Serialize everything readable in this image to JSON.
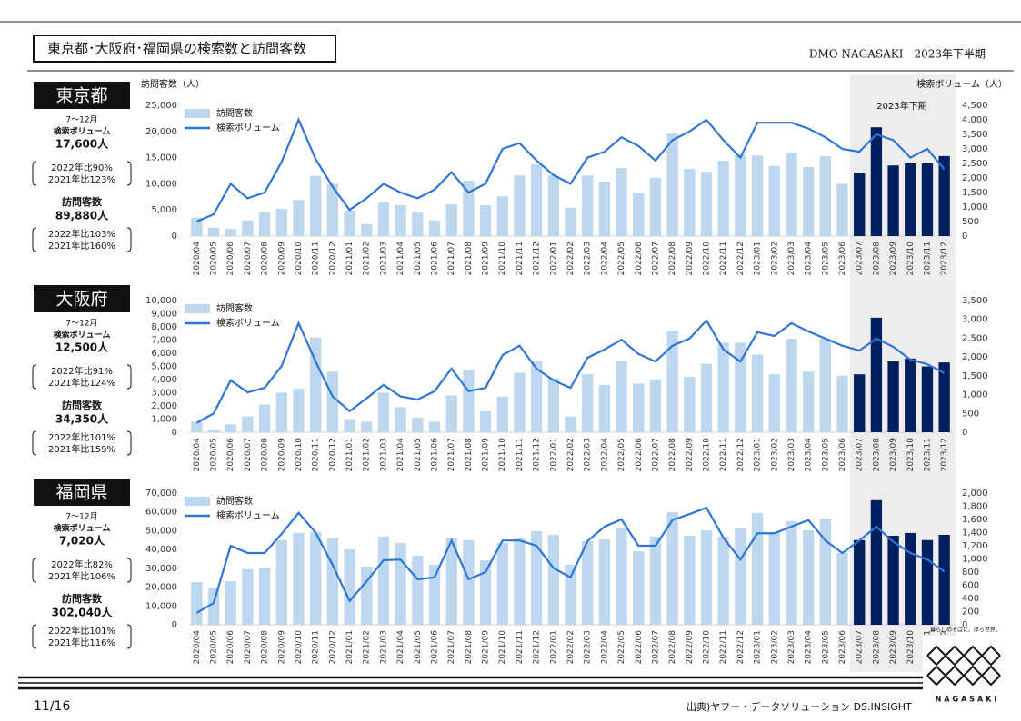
{
  "header": {
    "title": "東京都･大阪府･福岡県の検索数と訪問客数",
    "subtitle": "DMO NAGASAKI　2023年下半期"
  },
  "panels": [
    {
      "region": "東京都",
      "period": "7～12月",
      "search_label": "検索ボリューム",
      "search_total": "17,600人",
      "search_compare": [
        "2022年比90%",
        "2021年比123%"
      ],
      "visit_label": "訪問客数",
      "visit_total": "89,880人",
      "visit_compare": [
        "2022年比103%",
        "2021年比160%"
      ]
    },
    {
      "region": "大阪府",
      "period": "7～12月",
      "search_label": "検索ボリューム",
      "search_total": "12,500人",
      "search_compare": [
        "2022年比91%",
        "2021年比124%"
      ],
      "visit_label": "訪問客数",
      "visit_total": "34,350人",
      "visit_compare": [
        "2022年比101%",
        "2021年比159%"
      ]
    },
    {
      "region": "福岡県",
      "period": "7～12月",
      "search_label": "検索ボリューム",
      "search_total": "7,020人",
      "search_compare": [
        "2022年比82%",
        "2021年比106%"
      ],
      "visit_label": "訪問客数",
      "visit_total": "302,040人",
      "visit_compare": [
        "2022年比101%",
        "2021年比116%"
      ]
    }
  ],
  "chart_data": [
    {
      "type": "bar_line",
      "y_label": "訪問客数（人）",
      "y2_label": "検索ボリューム（人）",
      "legend": "upper left",
      "highlight": {
        "label": "2023年下期",
        "start": "2023/07",
        "end": "2023/12",
        "color": "#002060",
        "background": "#ededed"
      },
      "categories": [
        "2020/04",
        "2020/05",
        "2020/06",
        "2020/07",
        "2020/08",
        "2020/09",
        "2020/10",
        "2020/11",
        "2020/12",
        "2021/01",
        "2021/02",
        "2021/03",
        "2021/04",
        "2021/05",
        "2021/06",
        "2021/07",
        "2021/08",
        "2021/09",
        "2021/10",
        "2021/11",
        "2021/12",
        "2022/01",
        "2022/02",
        "2022/03",
        "2022/04",
        "2022/05",
        "2022/06",
        "2022/07",
        "2022/08",
        "2022/09",
        "2022/10",
        "2022/11",
        "2022/12",
        "2023/01",
        "2023/02",
        "2023/03",
        "2023/04",
        "2023/05",
        "2023/06",
        "2023/07",
        "2023/08",
        "2023/09",
        "2023/10",
        "2023/11",
        "2023/12"
      ],
      "series": [
        {
          "name": "訪問客数",
          "type": "bar",
          "color": "#bdd7ee",
          "values": [
            3500,
            1600,
            1400,
            3000,
            4500,
            5200,
            6900,
            11500,
            10000,
            4900,
            2300,
            6400,
            5900,
            4500,
            3000,
            6100,
            10600,
            5900,
            7600,
            11600,
            13700,
            11600,
            5400,
            11600,
            10400,
            13000,
            8200,
            11100,
            19600,
            12800,
            12300,
            14400,
            15600,
            15400,
            13400,
            16000,
            13200,
            15300,
            10000,
            12100,
            20800,
            13500,
            13900,
            13900,
            15300
          ]
        },
        {
          "name": "検索ボリューム",
          "type": "line",
          "axis": "y2",
          "color": "#2e75d6",
          "values": [
            500,
            750,
            1800,
            1300,
            1500,
            2550,
            4000,
            2650,
            1700,
            900,
            1300,
            1800,
            1500,
            1300,
            1600,
            2200,
            1500,
            1800,
            3000,
            3200,
            2600,
            2100,
            1800,
            2700,
            2900,
            3400,
            3100,
            2600,
            3300,
            3600,
            4000,
            3300,
            2700,
            3900,
            3900,
            3900,
            3700,
            3400,
            3000,
            2900,
            3500,
            3300,
            2700,
            3000,
            2300
          ]
        }
      ],
      "ylim": [
        0,
        25000
      ],
      "yticks": [
        0,
        {
          "value": 5000,
          "label": "5,000"
        },
        {
          "value": 10000,
          "label": "10,000"
        },
        {
          "value": 15000,
          "label": "15,000"
        },
        {
          "value": 20000,
          "label": "20,000"
        },
        {
          "value": 25000,
          "label": "25,000"
        }
      ],
      "y2lim": [
        0,
        4500
      ],
      "y2ticks": [
        0,
        500,
        {
          "value": 1000,
          "label": "1,000"
        },
        {
          "value": 1500,
          "label": "1,500"
        },
        {
          "value": 2000,
          "label": "2,000"
        },
        {
          "value": 2500,
          "label": "2,500"
        },
        {
          "value": 3000,
          "label": "3,000"
        },
        {
          "value": 3500,
          "label": "3,500"
        },
        {
          "value": 4000,
          "label": "4,000"
        },
        {
          "value": 4500,
          "label": "4,500"
        }
      ]
    },
    {
      "type": "bar_line",
      "legend": "upper left",
      "highlight": {
        "start": "2023/07",
        "end": "2023/12",
        "color": "#002060",
        "background": "#ededed"
      },
      "categories": [
        "2020/04",
        "2020/05",
        "2020/06",
        "2020/07",
        "2020/08",
        "2020/09",
        "2020/10",
        "2020/11",
        "2020/12",
        "2021/01",
        "2021/02",
        "2021/03",
        "2021/04",
        "2021/05",
        "2021/06",
        "2021/07",
        "2021/08",
        "2021/09",
        "2021/10",
        "2021/11",
        "2021/12",
        "2022/01",
        "2022/02",
        "2022/03",
        "2022/04",
        "2022/05",
        "2022/06",
        "2022/07",
        "2022/08",
        "2022/09",
        "2022/10",
        "2022/11",
        "2022/12",
        "2023/01",
        "2023/02",
        "2023/03",
        "2023/04",
        "2023/05",
        "2023/06",
        "2023/07",
        "2023/08",
        "2023/09",
        "2023/10",
        "2023/11",
        "2023/12"
      ],
      "series": [
        {
          "name": "訪問客数",
          "type": "bar",
          "color": "#bdd7ee",
          "values": [
            800,
            200,
            600,
            1200,
            2100,
            3000,
            3300,
            7200,
            4600,
            1000,
            800,
            3000,
            1900,
            1100,
            800,
            2800,
            4700,
            1600,
            2700,
            4500,
            5400,
            4100,
            1200,
            4400,
            3600,
            5400,
            3700,
            4000,
            7700,
            4200,
            5200,
            6800,
            6800,
            5900,
            4400,
            7100,
            4600,
            7100,
            4300,
            4400,
            8700,
            5400,
            5600,
            5000,
            5300
          ]
        },
        {
          "name": "検索ボリューム",
          "type": "line",
          "axis": "y2",
          "color": "#2e75d6",
          "values": [
            250,
            500,
            1380,
            1060,
            1180,
            1760,
            2900,
            1880,
            950,
            560,
            900,
            1260,
            950,
            870,
            1090,
            1690,
            1090,
            1180,
            2050,
            2300,
            1690,
            1380,
            1180,
            1980,
            2200,
            2460,
            2080,
            1880,
            2300,
            2490,
            2970,
            2200,
            1880,
            2660,
            2560,
            2900,
            2680,
            2490,
            2300,
            2170,
            2490,
            2270,
            1930,
            1810,
            1570
          ]
        }
      ],
      "ylim": [
        0,
        10000
      ],
      "yticks": [
        0,
        {
          "value": 1000,
          "label": "1,000"
        },
        {
          "value": 2000,
          "label": "2,000"
        },
        {
          "value": 3000,
          "label": "3,000"
        },
        {
          "value": 4000,
          "label": "4,000"
        },
        {
          "value": 5000,
          "label": "5,000"
        },
        {
          "value": 6000,
          "label": "6,000"
        },
        {
          "value": 7000,
          "label": "7,000"
        },
        {
          "value": 8000,
          "label": "8,000"
        },
        {
          "value": 9000,
          "label": "9,000"
        },
        {
          "value": 10000,
          "label": "10,000"
        }
      ],
      "y2lim": [
        0,
        3500
      ],
      "y2ticks": [
        0,
        500,
        {
          "value": 1000,
          "label": "1,000"
        },
        {
          "value": 1500,
          "label": "1,500"
        },
        {
          "value": 2000,
          "label": "2,000"
        },
        {
          "value": 2500,
          "label": "2,500"
        },
        {
          "value": 3000,
          "label": "3,000"
        },
        {
          "value": 3500,
          "label": "3,500"
        }
      ]
    },
    {
      "type": "bar_line",
      "legend": "upper left",
      "highlight": {
        "start": "2023/07",
        "end": "2023/12",
        "color": "#002060",
        "background": "#ededed"
      },
      "categories": [
        "2020/04",
        "2020/05",
        "2020/06",
        "2020/07",
        "2020/08",
        "2020/09",
        "2020/10",
        "2020/11",
        "2020/12",
        "2021/01",
        "2021/02",
        "2021/03",
        "2021/04",
        "2021/05",
        "2021/06",
        "2021/07",
        "2021/08",
        "2021/09",
        "2021/10",
        "2021/11",
        "2021/12",
        "2022/01",
        "2022/02",
        "2022/03",
        "2022/04",
        "2022/05",
        "2022/06",
        "2022/07",
        "2022/08",
        "2022/09",
        "2022/10",
        "2022/11",
        "2022/12",
        "2023/01",
        "2023/02",
        "2023/03",
        "2023/04",
        "2023/05",
        "2023/06",
        "2023/07",
        "2023/08",
        "2023/09",
        "2023/10",
        "2023/11",
        "2023/12"
      ],
      "series": [
        {
          "name": "訪問客数",
          "type": "bar",
          "color": "#bdd7ee",
          "values": [
            22700,
            19800,
            23200,
            29500,
            30400,
            45000,
            48800,
            49300,
            45900,
            40100,
            30900,
            46900,
            43500,
            36700,
            31900,
            46400,
            45000,
            34300,
            43500,
            46400,
            49800,
            47800,
            31900,
            44400,
            45400,
            51200,
            39100,
            46900,
            59900,
            47300,
            50200,
            46900,
            51200,
            59400,
            49300,
            55100,
            50200,
            56500,
            38200,
            45000,
            66200,
            47300,
            48800,
            45000,
            47800
          ]
        },
        {
          "name": "検索ボリューム",
          "type": "line",
          "axis": "y2",
          "color": "#2e75d6",
          "values": [
            180,
            330,
            1200,
            1090,
            1090,
            1380,
            1700,
            1400,
            910,
            360,
            660,
            980,
            990,
            690,
            720,
            1280,
            690,
            800,
            1280,
            1280,
            1200,
            860,
            720,
            1270,
            1490,
            1600,
            1200,
            1200,
            1590,
            1680,
            1780,
            1320,
            990,
            1390,
            1390,
            1490,
            1590,
            1280,
            1090,
            1280,
            1490,
            1260,
            1090,
            990,
            810
          ]
        }
      ],
      "ylim": [
        0,
        70000
      ],
      "yticks": [
        0,
        {
          "value": 10000,
          "label": "10,000"
        },
        {
          "value": 20000,
          "label": "20,000"
        },
        {
          "value": 30000,
          "label": "30,000"
        },
        {
          "value": 40000,
          "label": "40,000"
        },
        {
          "value": 50000,
          "label": "50,000"
        },
        {
          "value": 60000,
          "label": "60,000"
        },
        {
          "value": 70000,
          "label": "70,000"
        }
      ],
      "y2lim": [
        0,
        2000
      ],
      "y2ticks": [
        0,
        200,
        400,
        600,
        800,
        {
          "value": 1000,
          "label": "1,000"
        },
        {
          "value": 1200,
          "label": "1,200"
        },
        {
          "value": 1400,
          "label": "1,400"
        },
        {
          "value": 1600,
          "label": "1,600"
        },
        {
          "value": 1800,
          "label": "1,800"
        },
        {
          "value": 2000,
          "label": "2,000"
        }
      ]
    }
  ],
  "footer": {
    "page": "11/16",
    "source": "出典)ヤフー・データソリューション DS.INSIGHT",
    "logo_tagline": "暮らしのそばに、ほら世界。",
    "logo_name": "NAGASAKI"
  }
}
